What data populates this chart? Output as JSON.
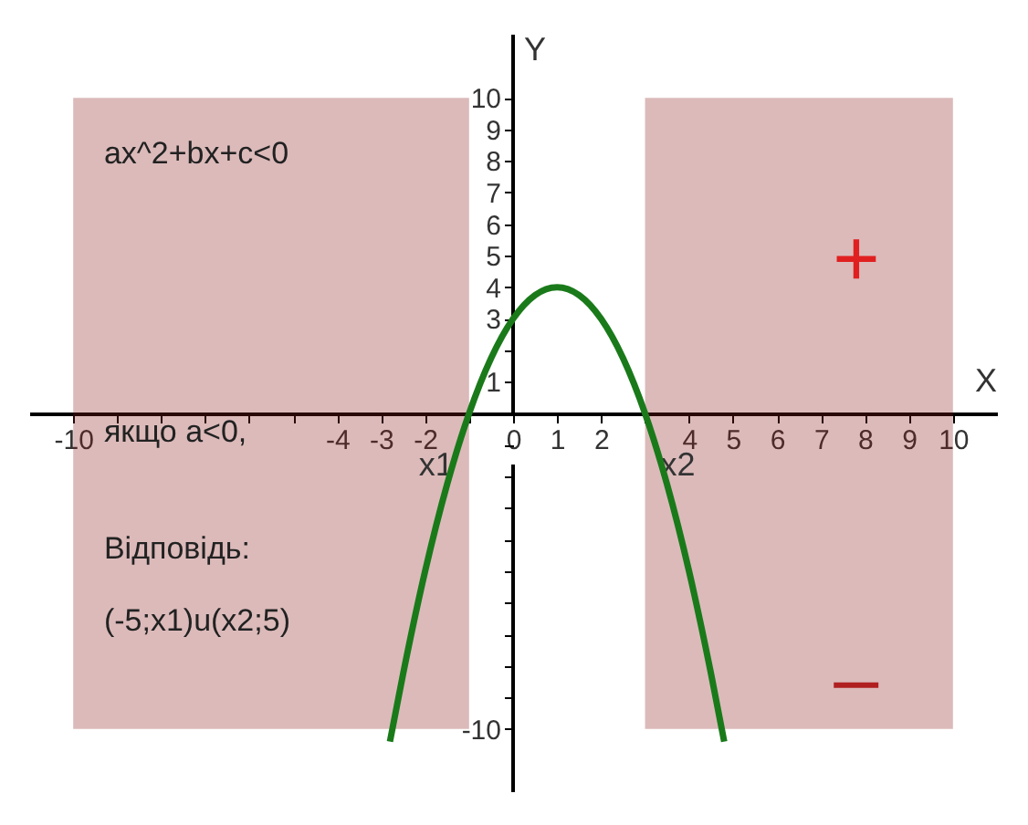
{
  "chart_data": {
    "type": "line",
    "xlabel": "X",
    "ylabel": "Y",
    "x": [
      -2.8,
      -2.5,
      -2,
      -1.5,
      -1,
      -0.5,
      0,
      0.5,
      1,
      1.5,
      2,
      2.5,
      3,
      3.5,
      4,
      4.5,
      4.8
    ],
    "series": [
      {
        "color": "#1a7a1a",
        "values": [
          -10.4,
          -8.25,
          -5,
          -2.25,
          0,
          1.75,
          3,
          3.75,
          4,
          3.75,
          3,
          1.75,
          0,
          -2.25,
          -5,
          -8.25,
          -10.4
        ]
      }
    ],
    "xlim": [
      -11,
      11
    ],
    "ylim": [
      -12,
      12
    ],
    "xticks": [
      -10,
      {
        "value": -9,
        "label": null
      },
      {
        "value": -8,
        "label": null
      },
      {
        "value": -7,
        "label": null
      },
      {
        "value": -6,
        "label": null
      },
      {
        "value": -5,
        "label": null
      },
      -4,
      -3,
      -2,
      {
        "value": -1,
        "label": null
      },
      0,
      1,
      2,
      {
        "value": 3,
        "label": null
      },
      4,
      5,
      6,
      7,
      8,
      9,
      10
    ],
    "yticks": [
      -10,
      {
        "value": -9,
        "label": null
      },
      {
        "value": -8,
        "label": null
      },
      {
        "value": -7,
        "label": null
      },
      {
        "value": -6,
        "label": null
      },
      {
        "value": -5,
        "label": null
      },
      {
        "value": -4,
        "label": null
      },
      {
        "value": -3,
        "label": null
      },
      {
        "value": -2,
        "label": null
      },
      {
        "value": -1,
        "label": null
      },
      1,
      {
        "value": 2,
        "label": null
      },
      3,
      4,
      5,
      6,
      7,
      8,
      9,
      10
    ],
    "bands": [
      {
        "axis": "x",
        "from": -10,
        "to": -1,
        "label": "x1",
        "color": "#8b1a1a"
      },
      {
        "axis": "x",
        "from": 3,
        "to": 10,
        "label": "x2",
        "color": "#8b1a1a"
      }
    ],
    "annotations": [
      "ax^2+bx+c<0",
      "якщо a<0,",
      "Відповідь:",
      "(-5;x1)u(x2;5)",
      "+",
      "–"
    ],
    "grid": false,
    "line_style": "solid",
    "marker": "none"
  }
}
